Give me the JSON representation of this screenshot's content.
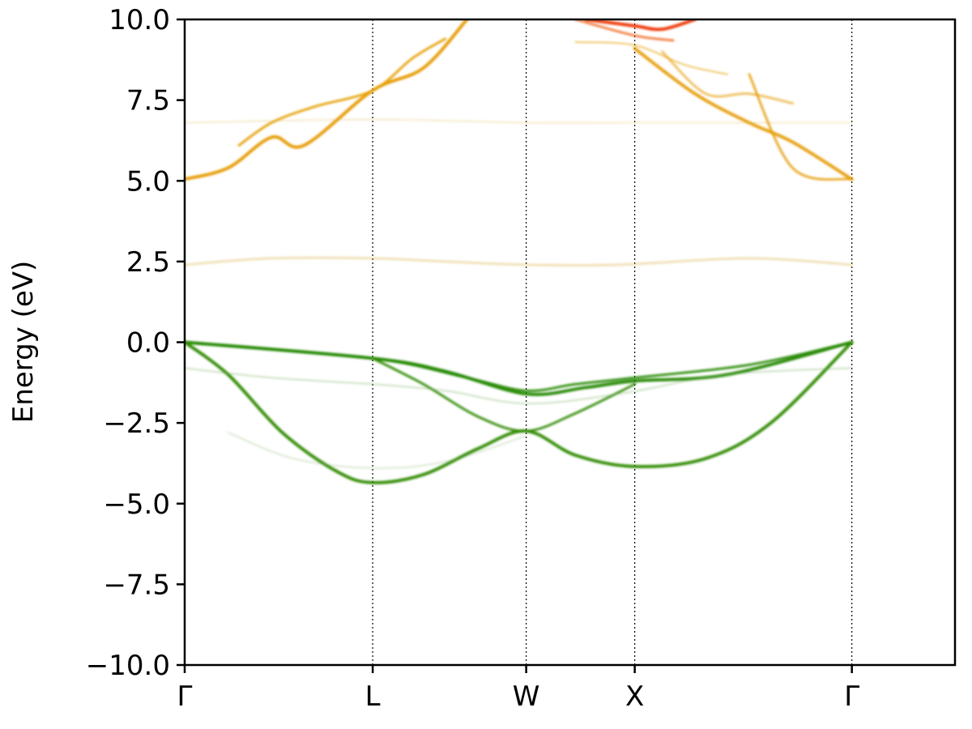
{
  "chart_data": {
    "type": "line",
    "title": "",
    "xlabel": "",
    "ylabel": "Energy (eV)",
    "ylim": [
      -10.0,
      10.0
    ],
    "yticks": [
      {
        "value": 10.0,
        "label": "10.0"
      },
      {
        "value": 7.5,
        "label": "7.5"
      },
      {
        "value": 5.0,
        "label": "5.0"
      },
      {
        "value": 2.5,
        "label": "2.5"
      },
      {
        "value": 0.0,
        "label": "0.0"
      },
      {
        "value": -2.5,
        "label": "−2.5"
      },
      {
        "value": -5.0,
        "label": "−5.0"
      },
      {
        "value": -7.5,
        "label": "−7.5"
      },
      {
        "value": -10.0,
        "label": "−10.0"
      }
    ],
    "xlim": [
      0,
      3.548
    ],
    "kpoints": [
      {
        "label": "Γ",
        "position": 0.0
      },
      {
        "label": "L",
        "position": 0.866
      },
      {
        "label": "W",
        "position": 1.573
      },
      {
        "label": "X",
        "position": 2.073
      },
      {
        "label": "Γ",
        "position": 3.073
      }
    ],
    "grid": false,
    "kpoint_lines": "dotted",
    "series": [
      {
        "group": "valence",
        "color": "#228800",
        "opacity": 0.95,
        "width": 4,
        "x": [
          0,
          0.866,
          1.2,
          1.573,
          1.85,
          2.073,
          2.5,
          3.073
        ],
        "y": [
          0.0,
          -0.5,
          -0.9,
          -1.6,
          -1.4,
          -1.2,
          -1.0,
          0.0
        ]
      },
      {
        "group": "valence",
        "color": "#228800",
        "opacity": 0.9,
        "width": 3,
        "x": [
          0,
          0.866,
          1.3,
          1.573,
          1.8,
          2.073,
          2.6,
          3.073
        ],
        "y": [
          0.0,
          -0.5,
          -1.1,
          -1.5,
          -1.3,
          -1.1,
          -0.7,
          0.0
        ]
      },
      {
        "group": "valence",
        "color": "#2e8a00",
        "opacity": 0.95,
        "width": 4,
        "x": [
          0,
          0.2,
          0.45,
          0.7,
          0.866,
          1.1,
          1.35,
          1.573,
          1.8,
          2.073,
          2.4,
          2.7,
          3.073
        ],
        "y": [
          0.0,
          -1.0,
          -2.8,
          -4.0,
          -4.35,
          -4.1,
          -3.3,
          -2.75,
          -3.5,
          -3.85,
          -3.6,
          -2.5,
          0.0
        ]
      },
      {
        "group": "valence",
        "color": "#2e8a00",
        "opacity": 0.9,
        "width": 3,
        "x": [
          0.866,
          1.1,
          1.35,
          1.573,
          1.8,
          2.073
        ],
        "y": [
          -0.5,
          -1.3,
          -2.3,
          -2.75,
          -2.2,
          -1.3
        ]
      },
      {
        "group": "valence",
        "color": "#6aa84f",
        "opacity": 0.35,
        "width": 2,
        "x": [
          0,
          0.4,
          0.866,
          1.2,
          1.573,
          2.0,
          2.5,
          3.073
        ],
        "y": [
          -0.8,
          -1.1,
          -1.3,
          -1.5,
          -1.9,
          -1.6,
          -1.0,
          -0.8
        ]
      },
      {
        "group": "valence",
        "color": "#6aa84f",
        "opacity": 0.25,
        "width": 2,
        "x": [
          0.2,
          0.5,
          0.866,
          1.2,
          1.573
        ],
        "y": [
          -2.8,
          -3.6,
          -3.9,
          -3.7,
          -2.9
        ]
      },
      {
        "group": "conduction",
        "color": "#d6a830",
        "opacity": 0.35,
        "width": 3,
        "x": [
          0,
          0.4,
          0.866,
          1.2,
          1.573,
          2.0,
          2.6,
          3.073
        ],
        "y": [
          2.4,
          2.6,
          2.6,
          2.5,
          2.4,
          2.4,
          2.6,
          2.4
        ]
      },
      {
        "group": "conduction",
        "color": "#e69a00",
        "opacity": 0.95,
        "width": 4,
        "x": [
          0,
          0.2,
          0.4,
          0.55,
          0.866,
          1.1,
          1.3
        ],
        "y": [
          5.05,
          5.4,
          6.35,
          6.1,
          7.8,
          8.5,
          10.0
        ]
      },
      {
        "group": "conduction",
        "color": "#e6a000",
        "opacity": 0.9,
        "width": 3,
        "x": [
          0.25,
          0.4,
          0.6,
          0.866,
          1.05,
          1.2
        ],
        "y": [
          6.1,
          6.8,
          7.3,
          7.8,
          8.8,
          9.4
        ]
      },
      {
        "group": "conduction",
        "color": "#d6a830",
        "opacity": 0.25,
        "width": 2,
        "x": [
          0,
          0.866,
          1.573,
          2.073,
          3.073
        ],
        "y": [
          6.8,
          6.9,
          6.8,
          6.8,
          6.8
        ]
      },
      {
        "group": "conduction",
        "color": "#e69a00",
        "opacity": 0.9,
        "width": 4,
        "x": [
          2.073,
          2.35,
          2.6,
          2.8,
          3.073
        ],
        "y": [
          9.1,
          7.7,
          6.8,
          6.2,
          5.05
        ]
      },
      {
        "group": "conduction",
        "color": "#e69a00",
        "opacity": 0.8,
        "width": 3,
        "x": [
          2.6,
          2.8,
          3.073
        ],
        "y": [
          8.3,
          5.4,
          5.05
        ]
      },
      {
        "group": "conduction",
        "color": "#e6a000",
        "opacity": 0.6,
        "width": 2,
        "x": [
          1.8,
          2.073,
          2.3,
          2.5
        ],
        "y": [
          9.3,
          9.2,
          8.6,
          8.3
        ]
      },
      {
        "group": "conduction",
        "color": "#e69a00",
        "opacity": 0.6,
        "width": 3,
        "x": [
          2.2,
          2.4,
          2.6,
          2.8
        ],
        "y": [
          9.0,
          7.7,
          7.7,
          7.4
        ]
      },
      {
        "group": "conduction-high",
        "color": "#ee3300",
        "opacity": 0.95,
        "width": 4,
        "x": [
          1.85,
          2.073,
          2.2,
          2.35
        ],
        "y": [
          10.0,
          9.8,
          9.7,
          10.0
        ]
      },
      {
        "group": "conduction-high",
        "color": "#ee5500",
        "opacity": 0.7,
        "width": 3,
        "x": [
          1.8,
          2.073,
          2.25
        ],
        "y": [
          10.0,
          9.5,
          9.35
        ]
      }
    ]
  }
}
